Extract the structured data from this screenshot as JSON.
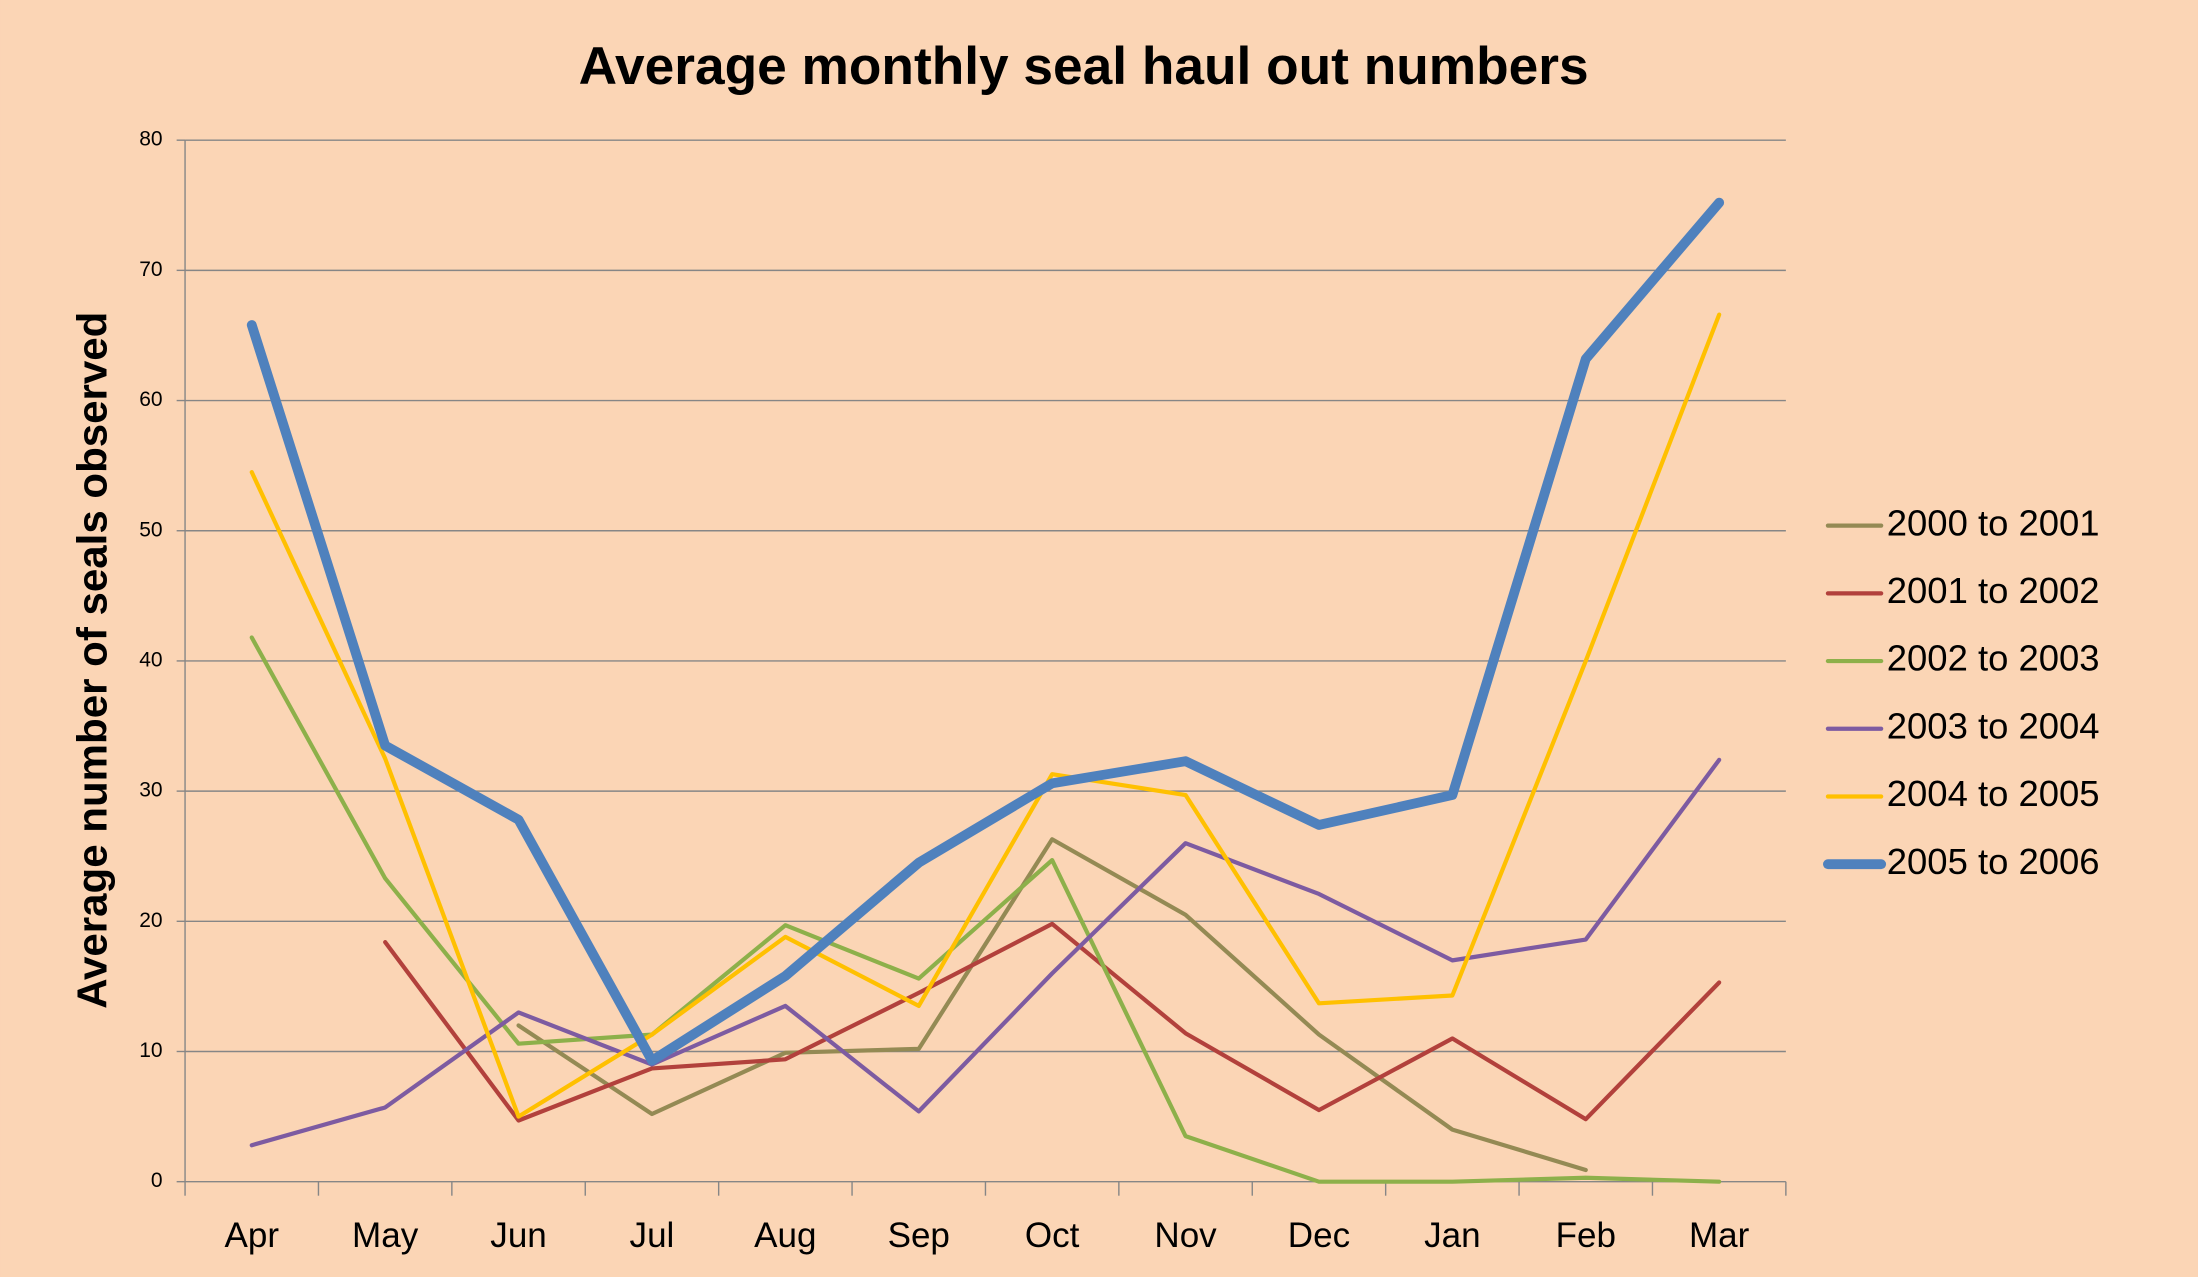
{
  "chart_data": {
    "type": "line",
    "title": "Average monthly seal haul out numbers",
    "y_label": "Average number of seals observed",
    "categories": [
      "Apr",
      "May",
      "Jun",
      "Jul",
      "Aug",
      "Sep",
      "Oct",
      "Nov",
      "Dec",
      "Jan",
      "Feb",
      "Mar"
    ],
    "series": [
      {
        "name": "2000 to 2001",
        "color": "#948a54",
        "linewidth": 3,
        "values": [
          null,
          null,
          12.0,
          5.2,
          9.9,
          10.2,
          26.3,
          20.5,
          11.3,
          4.0,
          0.9,
          null
        ]
      },
      {
        "name": "2001 to 2002",
        "color": "#b2413c",
        "linewidth": 3,
        "values": [
          null,
          18.4,
          4.7,
          8.7,
          9.4,
          14.5,
          19.8,
          11.4,
          5.5,
          11.0,
          4.8,
          15.3
        ]
      },
      {
        "name": "2002 to 2003",
        "color": "#8db04a",
        "linewidth": 3,
        "values": [
          41.8,
          23.3,
          10.6,
          11.3,
          19.7,
          15.6,
          24.7,
          3.5,
          0,
          0,
          0.3,
          0
        ]
      },
      {
        "name": "2003 to 2004",
        "color": "#7d5ba1",
        "linewidth": 3,
        "values": [
          2.8,
          5.7,
          13.0,
          9.0,
          13.5,
          5.4,
          16.0,
          26.0,
          22.1,
          17.0,
          18.6,
          32.4
        ]
      },
      {
        "name": "2004 to 2005",
        "color": "#ffc000",
        "linewidth": 3,
        "values": [
          54.5,
          32.5,
          5.0,
          11.3,
          18.8,
          13.5,
          31.3,
          29.7,
          13.7,
          14.3,
          40.0,
          66.6
        ]
      },
      {
        "name": "2005 to 2006",
        "color": "#4f81bd",
        "linewidth": 7,
        "values": [
          65.8,
          33.5,
          27.8,
          9.3,
          15.8,
          24.5,
          30.6,
          32.3,
          27.4,
          29.7,
          63.2,
          75.2
        ]
      }
    ],
    "ylim": [
      0,
      80
    ],
    "yticks": [
      0,
      10,
      20,
      30,
      40,
      50,
      60,
      70,
      80
    ],
    "grid": true,
    "legend": "right"
  }
}
